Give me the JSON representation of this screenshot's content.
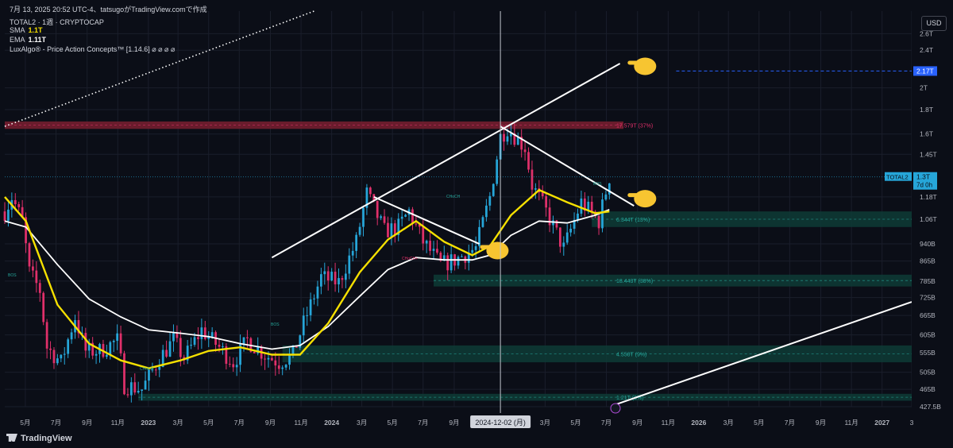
{
  "header": {
    "title_line": "7月 13, 2025 20:52 UTC-4、tatsugoがTradingView.comで作成",
    "symbol_line": "TOTAL2 · 1週 · CRYPTOCAP",
    "sma_label": "SMA",
    "sma_value": "1.1T",
    "ema_label": "EMA",
    "ema_value": "1.11T",
    "indicator_line": "LuxAlgo® - Price Action Concepts™ [1.14.6]  ⌀ ⌀ ⌀ ⌀"
  },
  "currency_button": "USD",
  "footer": {
    "brand": "TradingView"
  },
  "colors": {
    "background": "#0b0e17",
    "up": "#26a6d9",
    "down": "#e0306a",
    "sma": "#f5e000",
    "ema": "#ffffff",
    "grid": "#1a1e2b"
  },
  "chart_data": {
    "type": "candlestick",
    "title": "TOTAL2 · 1週 · CRYPTOCAP",
    "y_axis": {
      "scale": "log",
      "tick_labels": [
        "2.6T",
        "2.4T",
        "2T",
        "1.8T",
        "1.6T",
        "1.45T",
        "1.18T",
        "1.06T",
        "940B",
        "865B",
        "785B",
        "725B",
        "665B",
        "605B",
        "555B",
        "505B",
        "465B",
        "427.5B"
      ],
      "tick_values": [
        2.6,
        2.4,
        2.0,
        1.8,
        1.6,
        1.45,
        1.18,
        1.06,
        0.94,
        0.865,
        0.785,
        0.725,
        0.665,
        0.605,
        0.555,
        0.505,
        0.465,
        0.4275
      ],
      "range": [
        0.4275,
        2.9
      ]
    },
    "x_axis": {
      "range": [
        "2022-03-21",
        "2027-03-01"
      ],
      "ticks": [
        {
          "label": "5月",
          "date": "2022-05-01"
        },
        {
          "label": "7月",
          "date": "2022-07-01"
        },
        {
          "label": "9月",
          "date": "2022-09-01"
        },
        {
          "label": "11月",
          "date": "2022-11-01"
        },
        {
          "label": "2023",
          "date": "2023-01-01"
        },
        {
          "label": "3月",
          "date": "2023-03-01"
        },
        {
          "label": "5月",
          "date": "2023-05-01"
        },
        {
          "label": "7月",
          "date": "2023-07-01"
        },
        {
          "label": "9月",
          "date": "2023-09-01"
        },
        {
          "label": "11月",
          "date": "2023-11-01"
        },
        {
          "label": "2024",
          "date": "2024-01-01"
        },
        {
          "label": "3月",
          "date": "2024-03-01"
        },
        {
          "label": "5月",
          "date": "2024-05-01"
        },
        {
          "label": "7月",
          "date": "2024-07-01"
        },
        {
          "label": "9月",
          "date": "2024-09-01"
        },
        {
          "label": "3月",
          "date": "2025-03-01"
        },
        {
          "label": "5月",
          "date": "2025-05-01"
        },
        {
          "label": "7月",
          "date": "2025-07-01"
        },
        {
          "label": "9月",
          "date": "2025-09-01"
        },
        {
          "label": "11月",
          "date": "2025-11-01"
        },
        {
          "label": "2026",
          "date": "2026-01-01"
        },
        {
          "label": "3月",
          "date": "2026-03-01"
        },
        {
          "label": "5月",
          "date": "2026-05-01"
        },
        {
          "label": "7月",
          "date": "2026-07-01"
        },
        {
          "label": "9月",
          "date": "2026-09-01"
        },
        {
          "label": "11月",
          "date": "2026-11-01"
        },
        {
          "label": "2027",
          "date": "2027-01-01"
        },
        {
          "label": "3",
          "date": "2027-03-01"
        }
      ],
      "crosshair_label": "2024-12-02 (月)",
      "crosshair_date": "2024-12-02"
    },
    "price_path": [
      {
        "date": "2022-03-21",
        "v": 1.1
      },
      {
        "date": "2022-04-04",
        "v": 1.18
      },
      {
        "date": "2022-04-25",
        "v": 1.05
      },
      {
        "date": "2022-05-09",
        "v": 0.82
      },
      {
        "date": "2022-05-30",
        "v": 0.75
      },
      {
        "date": "2022-06-13",
        "v": 0.57
      },
      {
        "date": "2022-07-11",
        "v": 0.53
      },
      {
        "date": "2022-08-08",
        "v": 0.66
      },
      {
        "date": "2022-08-29",
        "v": 0.56
      },
      {
        "date": "2022-09-26",
        "v": 0.56
      },
      {
        "date": "2022-11-01",
        "v": 0.59
      },
      {
        "date": "2022-11-14",
        "v": 0.475
      },
      {
        "date": "2022-12-19",
        "v": 0.465
      },
      {
        "date": "2023-01-23",
        "v": 0.54
      },
      {
        "date": "2023-02-20",
        "v": 0.59
      },
      {
        "date": "2023-03-13",
        "v": 0.54
      },
      {
        "date": "2023-04-17",
        "v": 0.62
      },
      {
        "date": "2023-05-22",
        "v": 0.57
      },
      {
        "date": "2023-06-19",
        "v": 0.53
      },
      {
        "date": "2023-07-17",
        "v": 0.59
      },
      {
        "date": "2023-08-21",
        "v": 0.55
      },
      {
        "date": "2023-09-18",
        "v": 0.53
      },
      {
        "date": "2023-10-16",
        "v": 0.55
      },
      {
        "date": "2023-11-06",
        "v": 0.64
      },
      {
        "date": "2023-12-11",
        "v": 0.8
      },
      {
        "date": "2024-01-15",
        "v": 0.78
      },
      {
        "date": "2024-02-19",
        "v": 0.95
      },
      {
        "date": "2024-03-11",
        "v": 1.2
      },
      {
        "date": "2024-04-15",
        "v": 1.0
      },
      {
        "date": "2024-05-13",
        "v": 1.02
      },
      {
        "date": "2024-06-03",
        "v": 1.1
      },
      {
        "date": "2024-07-01",
        "v": 0.95
      },
      {
        "date": "2024-08-05",
        "v": 0.85
      },
      {
        "date": "2024-09-02",
        "v": 0.87
      },
      {
        "date": "2024-10-14",
        "v": 0.92
      },
      {
        "date": "2024-11-11",
        "v": 1.18
      },
      {
        "date": "2024-12-02",
        "v": 1.58
      },
      {
        "date": "2024-12-16",
        "v": 1.65
      },
      {
        "date": "2025-01-20",
        "v": 1.5
      },
      {
        "date": "2025-02-03",
        "v": 1.25
      },
      {
        "date": "2025-03-03",
        "v": 1.1
      },
      {
        "date": "2025-04-07",
        "v": 0.92
      },
      {
        "date": "2025-05-12",
        "v": 1.15
      },
      {
        "date": "2025-06-16",
        "v": 1.05
      },
      {
        "date": "2025-07-07",
        "v": 1.3
      }
    ],
    "sma": [
      {
        "date": "2022-03-21",
        "v": 1.18
      },
      {
        "date": "2022-05-02",
        "v": 1.05
      },
      {
        "date": "2022-07-04",
        "v": 0.7
      },
      {
        "date": "2022-09-05",
        "v": 0.58
      },
      {
        "date": "2022-11-07",
        "v": 0.535
      },
      {
        "date": "2023-01-02",
        "v": 0.515
      },
      {
        "date": "2023-03-06",
        "v": 0.535
      },
      {
        "date": "2023-05-01",
        "v": 0.56
      },
      {
        "date": "2023-07-03",
        "v": 0.57
      },
      {
        "date": "2023-09-04",
        "v": 0.55
      },
      {
        "date": "2023-10-30",
        "v": 0.55
      },
      {
        "date": "2023-12-25",
        "v": 0.64
      },
      {
        "date": "2024-02-26",
        "v": 0.82
      },
      {
        "date": "2024-04-22",
        "v": 0.96
      },
      {
        "date": "2024-06-17",
        "v": 1.05
      },
      {
        "date": "2024-08-12",
        "v": 0.95
      },
      {
        "date": "2024-10-07",
        "v": 0.89
      },
      {
        "date": "2024-11-11",
        "v": 0.93
      },
      {
        "date": "2024-12-23",
        "v": 1.08
      },
      {
        "date": "2025-02-17",
        "v": 1.22
      },
      {
        "date": "2025-04-14",
        "v": 1.15
      },
      {
        "date": "2025-06-09",
        "v": 1.09
      },
      {
        "date": "2025-07-07",
        "v": 1.1
      }
    ],
    "ema": [
      {
        "date": "2022-03-21",
        "v": 1.05
      },
      {
        "date": "2022-05-02",
        "v": 1.02
      },
      {
        "date": "2022-07-04",
        "v": 0.85
      },
      {
        "date": "2022-09-05",
        "v": 0.72
      },
      {
        "date": "2022-11-07",
        "v": 0.66
      },
      {
        "date": "2023-01-02",
        "v": 0.62
      },
      {
        "date": "2023-03-06",
        "v": 0.61
      },
      {
        "date": "2023-05-01",
        "v": 0.6
      },
      {
        "date": "2023-07-03",
        "v": 0.58
      },
      {
        "date": "2023-09-04",
        "v": 0.565
      },
      {
        "date": "2023-10-30",
        "v": 0.575
      },
      {
        "date": "2023-12-25",
        "v": 0.63
      },
      {
        "date": "2024-02-26",
        "v": 0.73
      },
      {
        "date": "2024-04-22",
        "v": 0.83
      },
      {
        "date": "2024-06-17",
        "v": 0.88
      },
      {
        "date": "2024-08-12",
        "v": 0.87
      },
      {
        "date": "2024-10-07",
        "v": 0.87
      },
      {
        "date": "2024-11-11",
        "v": 0.89
      },
      {
        "date": "2024-12-23",
        "v": 0.98
      },
      {
        "date": "2025-02-17",
        "v": 1.05
      },
      {
        "date": "2025-04-14",
        "v": 1.04
      },
      {
        "date": "2025-06-09",
        "v": 1.08
      },
      {
        "date": "2025-07-07",
        "v": 1.11
      }
    ],
    "zones": [
      {
        "kind": "supply",
        "from": "2022-03-21",
        "to": "2025-08-04",
        "low": 1.64,
        "high": 1.7,
        "label": "17.579T (37%)"
      },
      {
        "kind": "demand",
        "from": "2025-06-02",
        "to": "2027-03-01",
        "low": 1.02,
        "high": 1.1,
        "label": "6.344T (13%)"
      },
      {
        "kind": "demand",
        "from": "2024-07-22",
        "to": "2027-03-01",
        "low": 0.765,
        "high": 0.81,
        "label": "18.443T (38%)"
      },
      {
        "kind": "demand",
        "from": "2023-09-25",
        "to": "2027-03-01",
        "low": 0.53,
        "high": 0.575,
        "label": "4.558T (9%)"
      },
      {
        "kind": "demand",
        "from": "2022-12-12",
        "to": "2027-03-01",
        "low": 0.44,
        "high": 0.455,
        "label": "1.21T (3%)"
      }
    ],
    "last_price_label": "1.3T",
    "last_price_sub": "7d 0h",
    "last_price_symbol": "TOTAL2",
    "last_price_value": 1.3,
    "target_level_label": "2.17T",
    "target_level_value": 2.17,
    "trendlines": [
      {
        "from": {
          "date": "2023-09-04",
          "v": 0.88
        },
        "to": {
          "date": "2025-07-28",
          "v": 2.25
        },
        "style": "solid"
      },
      {
        "from": {
          "date": "2024-12-02",
          "v": 1.66
        },
        "to": {
          "date": "2025-08-25",
          "v": 1.13
        },
        "style": "solid"
      },
      {
        "from": {
          "date": "2024-03-25",
          "v": 1.18
        },
        "to": {
          "date": "2024-10-21",
          "v": 0.94
        },
        "style": "solid"
      },
      {
        "from": {
          "date": "2025-07-14",
          "v": 0.43
        },
        "to": {
          "date": "2027-03-01",
          "v": 0.71
        },
        "style": "solid"
      },
      {
        "from": {
          "date": "2022-03-21",
          "v": 1.66
        },
        "to": {
          "date": "2023-11-27",
          "v": 2.9
        },
        "style": "dotted"
      }
    ],
    "annotations": [
      "BOS",
      "BOS",
      "CHoCH",
      "CHoCH",
      "CHoCH+",
      "BOS"
    ],
    "pointers": [
      {
        "date": "2025-08-25",
        "v": 2.22
      },
      {
        "date": "2025-08-25",
        "v": 1.17
      },
      {
        "date": "2024-11-04",
        "v": 0.91
      }
    ]
  }
}
